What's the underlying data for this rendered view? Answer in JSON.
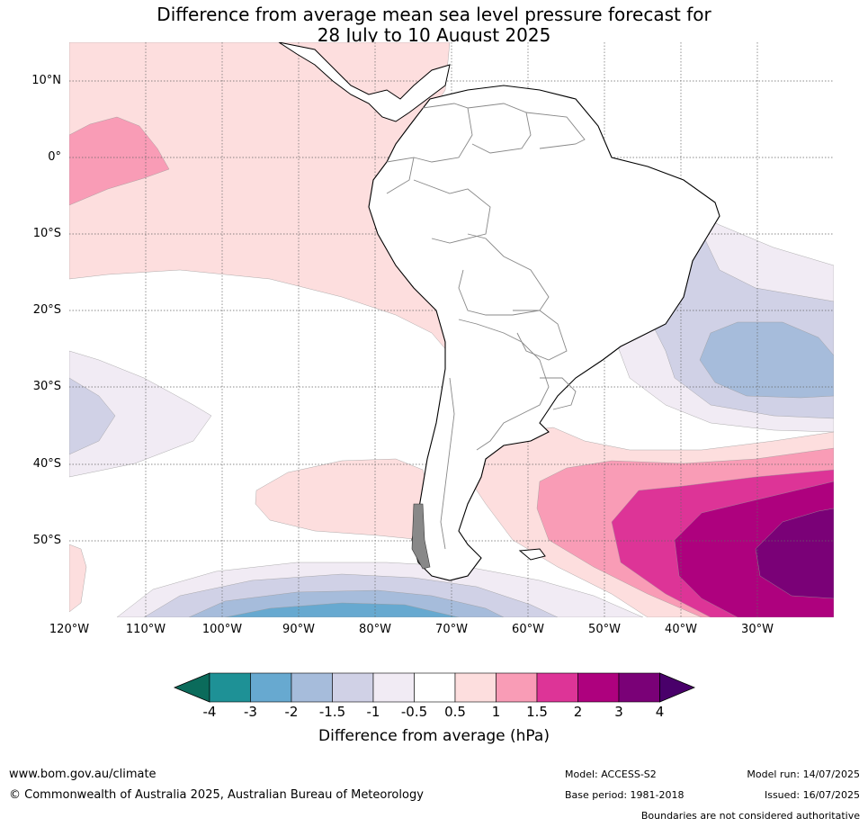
{
  "title": {
    "line1": "Difference from average mean sea level pressure forecast for",
    "line2": "28 July to 10 August 2025"
  },
  "axes": {
    "lat_labels": [
      "10°N",
      "0°",
      "10°S",
      "20°S",
      "30°S",
      "40°S",
      "50°S"
    ],
    "lon_labels": [
      "120°W",
      "110°W",
      "100°W",
      "90°W",
      "80°W",
      "70°W",
      "60°W",
      "50°W",
      "40°W",
      "30°W"
    ]
  },
  "colorbar": {
    "title": "Difference from average (hPa)",
    "tick_labels": [
      "-4",
      "-3",
      "-2",
      "-1.5",
      "-1",
      "-0.5",
      "0.5",
      "1",
      "1.5",
      "2",
      "3",
      "4"
    ],
    "colors": [
      "#0b6b5b",
      "#1e9196",
      "#67a9d0",
      "#a6bcdb",
      "#d0d1e6",
      "#f1ebf4",
      "#ffffff",
      "#fddede",
      "#f99cb6",
      "#dd3497",
      "#ae017e",
      "#7a0177",
      "#49006a"
    ]
  },
  "footer": {
    "website": "www.bom.gov.au/climate",
    "copyright": "© Commonwealth of Australia 2025, Australian Bureau of Meteorology",
    "model": "Model: ACCESS-S2",
    "base_period": "Base period: 1981-2018",
    "model_run": "Model run: 14/07/2025",
    "issued": "Issued: 16/07/2025",
    "disclaimer": "Boundaries are not considered authoritative"
  }
}
